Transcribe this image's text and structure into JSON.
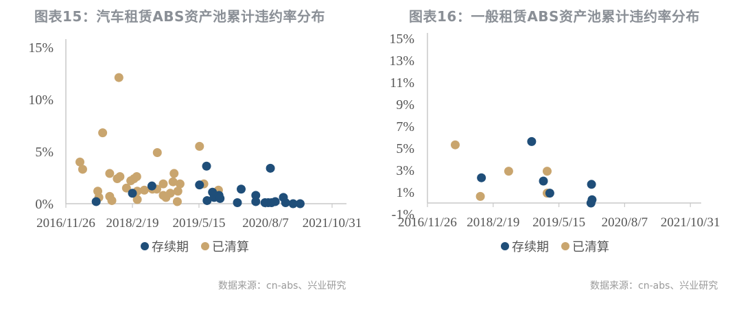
{
  "colors": {
    "ongoing": "#1f4e79",
    "settled": "#c9a56e",
    "axis": "#c8c8c8",
    "title": "#8a8f96",
    "source": "#9a9a9a"
  },
  "charts": [
    {
      "title": "图表15：汽车租赁ABS资产池累计违约率分布",
      "legend": [
        {
          "label": "存续期",
          "color": "#1f4e79"
        },
        {
          "label": "已清算",
          "color": "#c9a56e"
        }
      ],
      "source": "数据来源：cn-abs、兴业研究",
      "yticks": [
        "15%",
        "10%",
        "5%",
        "0%"
      ],
      "xticks": [
        "2016/11/26",
        "2018/2/19",
        "2019/5/15",
        "2020/8/7",
        "2021/10/31"
      ]
    },
    {
      "title": "图表16：一般租赁ABS资产池累计违约率分布",
      "legend": [
        {
          "label": "存续期",
          "color": "#1f4e79"
        },
        {
          "label": "已清算",
          "color": "#c9a56e"
        }
      ],
      "source": "数据来源：cn-abs、兴业研究",
      "yticks": [
        "15%",
        "13%",
        "11%",
        "9%",
        "7%",
        "5%",
        "3%",
        "1%",
        "-1%"
      ],
      "xticks": [
        "2016/11/26",
        "2018/2/19",
        "2019/5/15",
        "2020/8/7",
        "2021/10/31"
      ]
    }
  ],
  "chart_data": [
    {
      "type": "scatter",
      "title": "图表15：汽车租赁ABS资产池累计违约率分布",
      "xlabel": "",
      "ylabel": "",
      "xlim": [
        "2016/11/26",
        "2022/03"
      ],
      "ylim": [
        0,
        15
      ],
      "grid": false,
      "legend_position": "bottom",
      "x_tick_labels": [
        "2016/11/26",
        "2018/2/19",
        "2019/5/15",
        "2020/8/7",
        "2021/10/31"
      ],
      "y_tick_labels": [
        "0%",
        "5%",
        "10%",
        "15%"
      ],
      "series": [
        {
          "name": "存续期",
          "color": "#1f4e79",
          "points": [
            [
              0.56,
              0.2
            ],
            [
              1.23,
              1.0
            ],
            [
              1.59,
              1.7
            ],
            [
              2.47,
              1.8
            ],
            [
              2.6,
              3.6
            ],
            [
              2.61,
              0.3
            ],
            [
              2.71,
              1.1
            ],
            [
              2.74,
              0.6
            ],
            [
              2.83,
              0.8
            ],
            [
              2.85,
              0.5
            ],
            [
              3.17,
              0.1
            ],
            [
              3.24,
              1.4
            ],
            [
              3.51,
              0.2
            ],
            [
              3.51,
              0.8
            ],
            [
              3.68,
              0.1
            ],
            [
              3.74,
              0.1
            ],
            [
              3.78,
              3.4
            ],
            [
              3.8,
              0.1
            ],
            [
              3.87,
              0.2
            ],
            [
              4.02,
              0.6
            ],
            [
              4.06,
              0.1
            ],
            [
              4.2,
              0.0
            ],
            [
              4.33,
              0.0
            ]
          ]
        },
        {
          "name": "已清算",
          "color": "#c9a56e",
          "points": [
            [
              0.26,
              4.0
            ],
            [
              0.31,
              3.3
            ],
            [
              0.59,
              1.2
            ],
            [
              0.61,
              0.6
            ],
            [
              0.68,
              6.8
            ],
            [
              0.81,
              0.7
            ],
            [
              0.85,
              0.3
            ],
            [
              0.81,
              2.9
            ],
            [
              0.95,
              2.4
            ],
            [
              1.0,
              2.6
            ],
            [
              0.98,
              12.1
            ],
            [
              1.12,
              1.5
            ],
            [
              1.2,
              2.2
            ],
            [
              1.26,
              2.4
            ],
            [
              1.31,
              2.6
            ],
            [
              1.32,
              1.2
            ],
            [
              1.32,
              0.4
            ],
            [
              1.45,
              1.3
            ],
            [
              1.6,
              1.4
            ],
            [
              1.68,
              1.4
            ],
            [
              1.69,
              4.9
            ],
            [
              1.8,
              1.9
            ],
            [
              1.8,
              0.8
            ],
            [
              1.85,
              0.6
            ],
            [
              1.93,
              1.0
            ],
            [
              1.98,
              2.1
            ],
            [
              2.0,
              2.9
            ],
            [
              2.07,
              1.2
            ],
            [
              2.11,
              1.9
            ],
            [
              2.06,
              0.2
            ],
            [
              2.47,
              5.5
            ],
            [
              2.55,
              1.9
            ],
            [
              2.82,
              1.3
            ]
          ]
        }
      ],
      "note": "x values in years since 2016/11/26 (tick spacing ≈ 1.23 years)"
    },
    {
      "type": "scatter",
      "title": "图表16：一般租赁ABS资产池累计违约率分布",
      "xlabel": "",
      "ylabel": "",
      "xlim": [
        "2016/11/26",
        "2022/03"
      ],
      "ylim": [
        -1,
        15
      ],
      "grid": false,
      "legend_position": "bottom",
      "x_tick_labels": [
        "2016/11/26",
        "2018/2/19",
        "2019/5/15",
        "2020/8/7",
        "2021/10/31"
      ],
      "y_tick_labels": [
        "-1%",
        "1%",
        "3%",
        "5%",
        "7%",
        "9%",
        "11%",
        "13%",
        "15%"
      ],
      "series": [
        {
          "name": "存续期",
          "color": "#1f4e79",
          "points": [
            [
              1.01,
              2.3
            ],
            [
              1.95,
              5.6
            ],
            [
              2.17,
              2.0
            ],
            [
              2.29,
              0.9
            ],
            [
              3.07,
              1.7
            ],
            [
              3.08,
              0.3
            ],
            [
              3.06,
              0.0
            ]
          ]
        },
        {
          "name": "已清算",
          "color": "#c9a56e",
          "points": [
            [
              0.52,
              5.3
            ],
            [
              0.99,
              0.6
            ],
            [
              1.52,
              2.9
            ],
            [
              2.24,
              2.9
            ],
            [
              2.24,
              0.9
            ]
          ]
        }
      ],
      "note": "x values in years since 2016/11/26 (tick spacing ≈ 1.23 years)"
    }
  ]
}
